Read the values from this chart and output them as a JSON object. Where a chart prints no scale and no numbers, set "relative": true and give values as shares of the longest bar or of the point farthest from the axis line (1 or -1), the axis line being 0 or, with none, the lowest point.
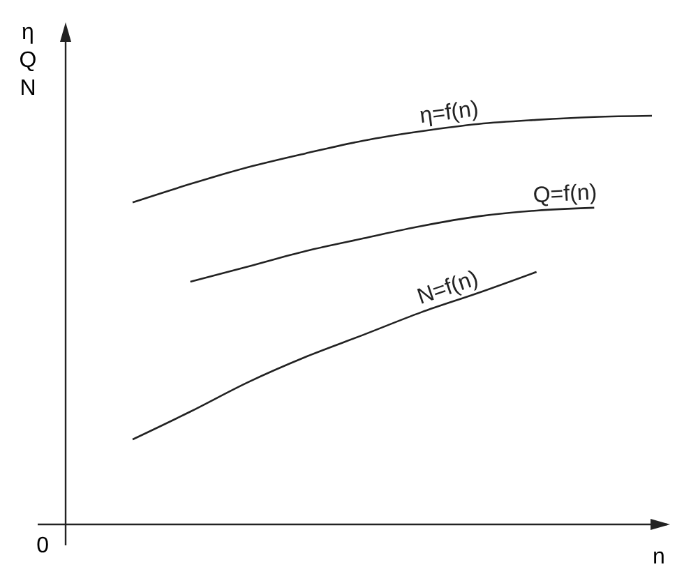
{
  "chart_data": {
    "type": "line",
    "relative": true,
    "xlabel": "n",
    "ylabel": "η\nQ\nN",
    "annotations": [
      "0"
    ],
    "line_style": "solid",
    "categories": [
      null,
      null,
      null,
      null,
      null,
      null,
      null,
      null,
      null,
      null
    ],
    "series": [
      {
        "name": "η=f(n)",
        "color": "#222222",
        "values": [
          0.788,
          0.833,
          0.874,
          0.908,
          0.939,
          0.962,
          0.98,
          0.99,
          0.997,
          1
        ]
      },
      {
        "name": "Q=f(n)",
        "color": "#222222",
        "values": [
          null,
          0.594,
          0.631,
          0.669,
          0.7,
          0.73,
          0.754,
          0.768,
          0.775,
          null
        ]
      },
      {
        "name": "N=f(n)",
        "color": "#222222",
        "values": [
          0.208,
          0.276,
          0.348,
          0.41,
          0.464,
          0.519,
          0.567,
          0.618,
          null,
          null
        ]
      }
    ]
  }
}
